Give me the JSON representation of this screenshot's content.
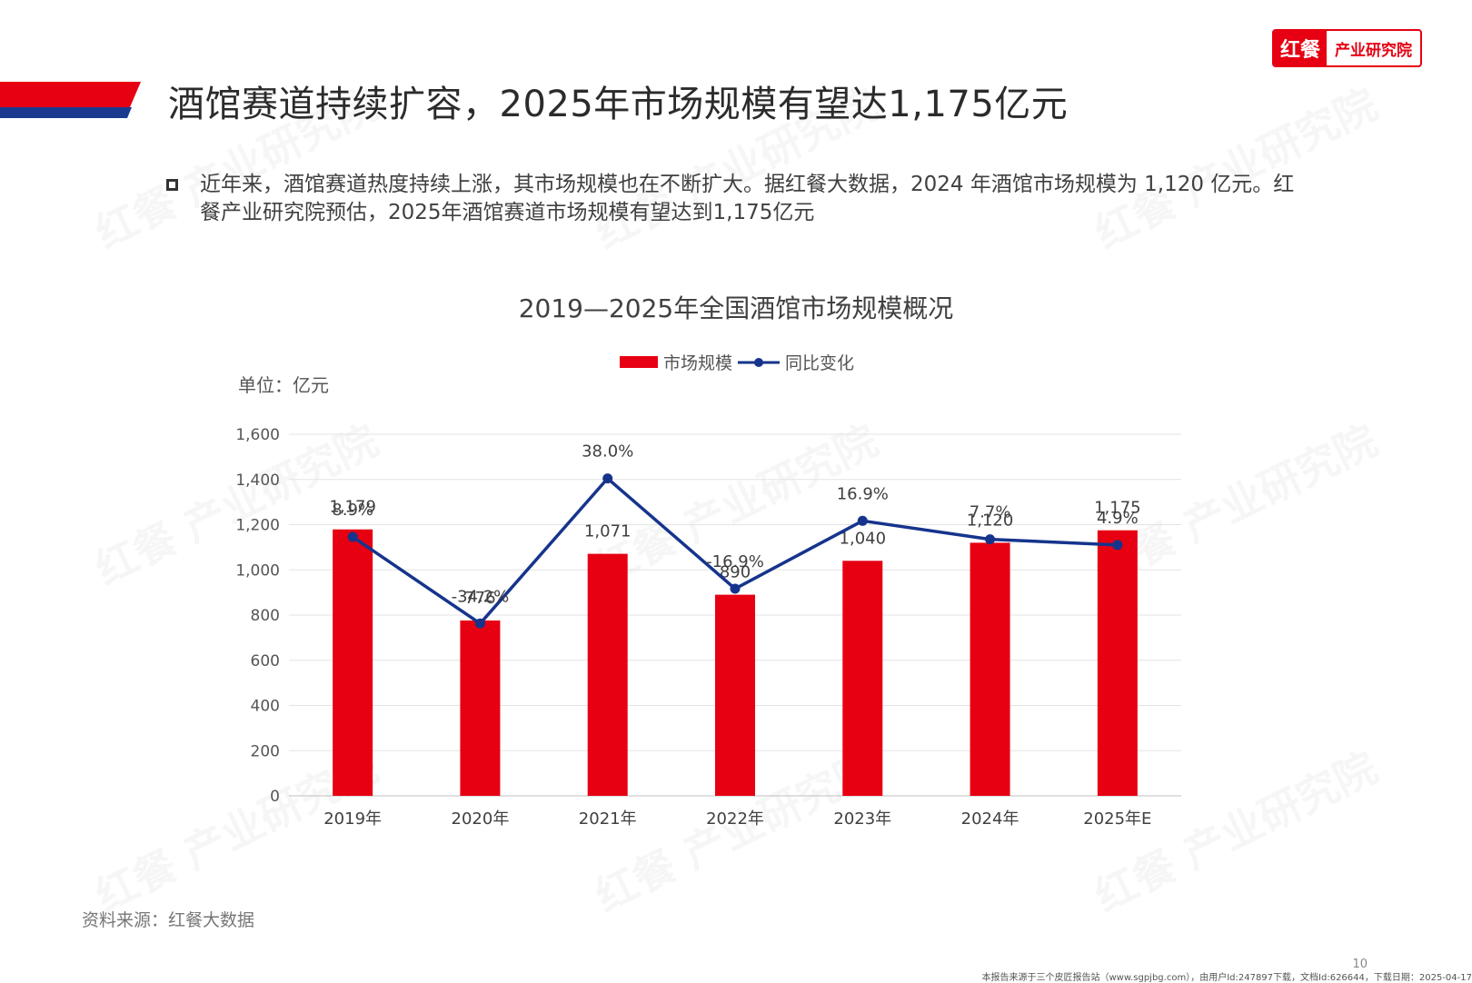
{
  "logo": {
    "mark": "红餐",
    "text": "产业研究院"
  },
  "page_title": "酒馆赛道持续扩容，2025年市场规模有望达1,175亿元",
  "body_text": "近年来，酒馆赛道热度持续上涨，其市场规模也在不断扩大。据红餐大数据，2024 年酒馆市场规模为 1,120 亿元。红餐产业研究院预估，2025年酒馆赛道市场规模有望达到1,175亿元",
  "chart_unit": "单位：亿元",
  "source": "资料来源：红餐大数据",
  "page_number": "10",
  "footer_note": "本报告来源于三个皮匠报告站（www.sgpjbg.com），由用户Id:247897下载，文档Id:626644，下载日期：2025-04-17",
  "watermark_text": "红餐 产业研究院",
  "colors": {
    "accent_red": "#e60012",
    "accent_blue": "#1a3a8f",
    "bar": "#e60012",
    "line": "#16348c"
  },
  "chart_data": {
    "type": "bar+line",
    "title": "2019—2025年全国酒馆市场规模概况",
    "categories": [
      "2019年",
      "2020年",
      "2021年",
      "2022年",
      "2023年",
      "2024年",
      "2025年E"
    ],
    "series": [
      {
        "name": "市场规模",
        "type": "bar",
        "values": [
          1179,
          776,
          1071,
          890,
          1040,
          1120,
          1175
        ],
        "labels": [
          "1,179",
          "776",
          "1,071",
          "890",
          "1,040",
          "1,120",
          "1,175"
        ]
      },
      {
        "name": "同比变化",
        "type": "line",
        "values": [
          8.9,
          -34.2,
          38.0,
          -16.9,
          16.9,
          7.7,
          4.9
        ],
        "labels": [
          "8.9%",
          "-34.2%",
          "38.0%",
          "-16.9%",
          "16.9%",
          "7.7%",
          "4.9%"
        ]
      }
    ],
    "ylim": [
      0,
      1600
    ],
    "yticks": [
      "0",
      "200",
      "400",
      "600",
      "800",
      "1,000",
      "1,200",
      "1,400",
      "1,600"
    ],
    "y2lim": [
      -120,
      60
    ],
    "grid": true,
    "legend_position": "top-center"
  }
}
